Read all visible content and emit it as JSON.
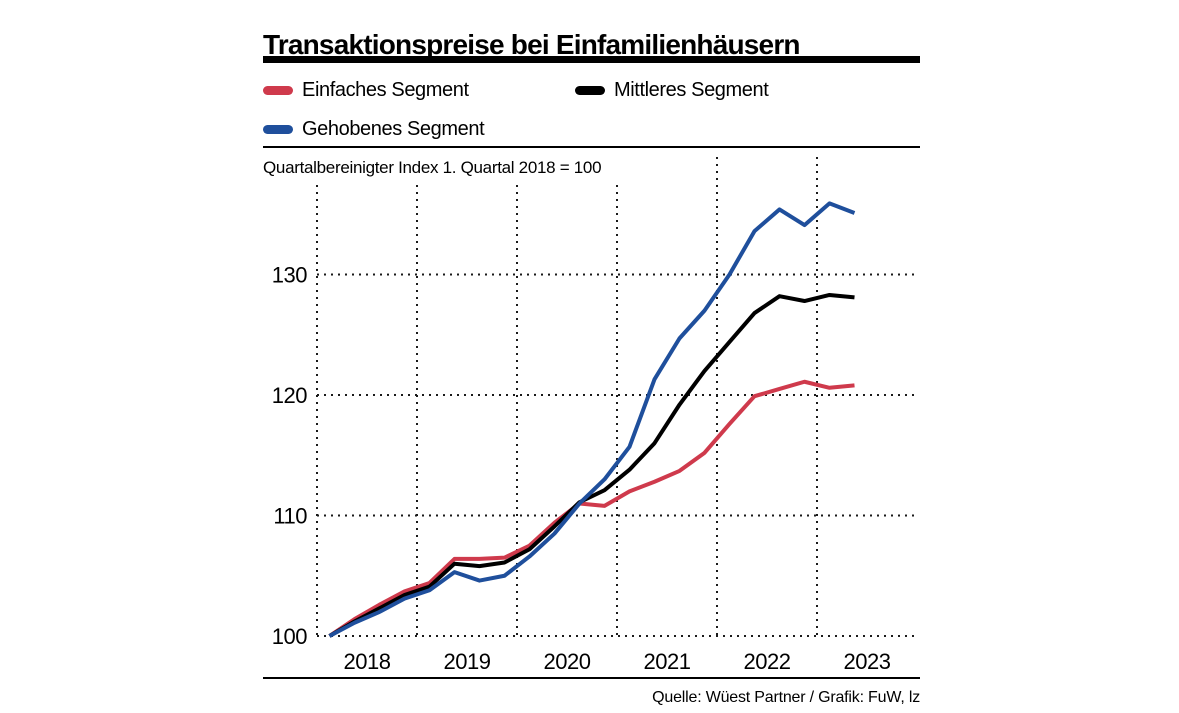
{
  "colors": {
    "einfaches_segment": "#cf3a4c",
    "mittleres_segment": "#000000",
    "gehobenes_segment": "#1f4f9c",
    "grid": "#1a1a1a",
    "text": "#000000"
  },
  "legend": [
    {
      "label": "Einfaches Segment",
      "color": "#cf3a4c"
    },
    {
      "label": "Mittleres Segment",
      "color": "#000000"
    },
    {
      "label": "Gehobenes Segment",
      "color": "#1f4f9c"
    }
  ],
  "chart_data": {
    "type": "line",
    "title": "Transaktionspreise bei Einfamilienhäusern",
    "subtitle": "Quartalbereinigter Index 1. Quartal 2018 = 100",
    "source": "Quelle: Wüest Partner / Grafik: FuW, lz",
    "xlabel": "",
    "ylabel": "",
    "grid": "dotted",
    "legend_position": "top",
    "x_unit": "quarter",
    "categories": [
      "Q1 2018",
      "Q2 2018",
      "Q3 2018",
      "Q4 2018",
      "Q1 2019",
      "Q2 2019",
      "Q3 2019",
      "Q4 2019",
      "Q1 2020",
      "Q2 2020",
      "Q3 2020",
      "Q4 2020",
      "Q1 2021",
      "Q2 2021",
      "Q3 2021",
      "Q4 2021",
      "Q1 2022",
      "Q2 2022",
      "Q3 2022",
      "Q4 2022",
      "Q1 2023",
      "Q2 2023"
    ],
    "x_tick_labels": [
      "2018",
      "2019",
      "2020",
      "2021",
      "2022",
      "2023"
    ],
    "y_tick_values": [
      100,
      110,
      120,
      130
    ],
    "ylim": [
      100,
      140
    ],
    "series": [
      {
        "name": "Einfaches Segment",
        "id": "einfaches-segment",
        "color": "#cf3a4c",
        "values": [
          100,
          101.4,
          102.6,
          103.7,
          104.4,
          106.4,
          106.4,
          106.5,
          107.5,
          109.4,
          111.0,
          110.8,
          112.0,
          112.8,
          113.7,
          115.2,
          117.6,
          119.9,
          120.5,
          121.1,
          120.6,
          120.8
        ]
      },
      {
        "name": "Mittleres Segment",
        "id": "mittleres-segment",
        "color": "#000000",
        "values": [
          100,
          101.2,
          102.3,
          103.4,
          104.1,
          106.0,
          105.8,
          106.1,
          107.2,
          109.1,
          111.1,
          112.1,
          113.8,
          116.0,
          119.2,
          122.0,
          124.4,
          126.8,
          128.2,
          127.8,
          128.3,
          128.1
        ]
      },
      {
        "name": "Gehobenes Segment",
        "id": "gehobenes-segment",
        "color": "#1f4f9c",
        "values": [
          100,
          101.1,
          102.0,
          103.1,
          103.8,
          105.3,
          104.6,
          105.0,
          106.6,
          108.5,
          111.0,
          113.0,
          115.7,
          121.3,
          124.7,
          127.0,
          130.0,
          133.6,
          135.4,
          134.1,
          135.9,
          135.1
        ]
      }
    ]
  }
}
